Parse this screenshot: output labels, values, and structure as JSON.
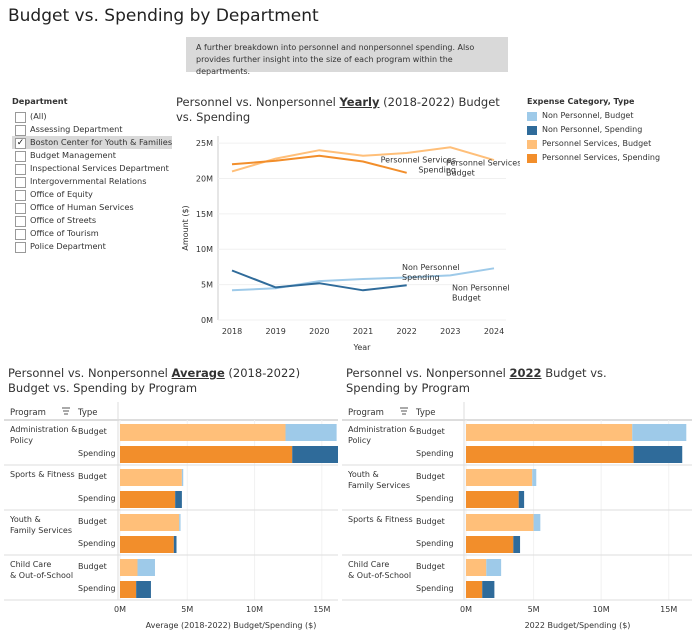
{
  "page": {
    "title": "Budget vs. Spending by Department",
    "description": "A further breakdown into personnel and nonpersonnel spending. Also provides further insight into the size of each program within the departments."
  },
  "filter": {
    "title": "Department",
    "items": [
      {
        "label": "(All)",
        "checked": false
      },
      {
        "label": "Assessing Department",
        "checked": false
      },
      {
        "label": "Boston Center for Youth & Families",
        "checked": true
      },
      {
        "label": "Budget Management",
        "checked": false
      },
      {
        "label": "Inspectional Services Department",
        "checked": false
      },
      {
        "label": "Intergovernmental Relations",
        "checked": false
      },
      {
        "label": "Office of Equity",
        "checked": false
      },
      {
        "label": "Office of Human Services",
        "checked": false
      },
      {
        "label": "Office of Streets",
        "checked": false
      },
      {
        "label": "Office of Tourism",
        "checked": false
      },
      {
        "label": "Police Department",
        "checked": false
      }
    ]
  },
  "legend": {
    "title": "Expense Category, Type",
    "items": [
      {
        "label": "Non Personnel, Budget",
        "color": "#9ecae9"
      },
      {
        "label": "Non Personnel, Spending",
        "color": "#2f6b9a"
      },
      {
        "label": "Personnel Services, Budget",
        "color": "#ffbf79"
      },
      {
        "label": "Personnel Services, Spending",
        "color": "#f28e2b"
      }
    ]
  },
  "line_chart": {
    "title_pre": "Personnel vs. Nonpersonnel ",
    "title_em": "Yearly",
    "title_post": " (2018-2022) Budget vs. Spending"
  },
  "avg_chart": {
    "title_pre": "Personnel vs. Nonpersonnel ",
    "title_em": "Average",
    "title_post": " (2018-2022) Budget vs. Spending by Program",
    "col_program": "Program",
    "col_type": "Type"
  },
  "y22_chart": {
    "title_pre": "Personnel vs. Nonpersonnel ",
    "title_em": "2022",
    "title_post": " Budget vs. Spending by Program",
    "col_program": "Program",
    "col_type": "Type"
  },
  "chart_data": [
    {
      "type": "line",
      "x": [
        2018,
        2019,
        2020,
        2021,
        2022,
        2023,
        2024
      ],
      "xlabel": "Year",
      "ylabel": "Amount ($)",
      "ylim": [
        0,
        26000000
      ],
      "yticks": [
        "0M",
        "5M",
        "10M",
        "15M",
        "20M",
        "25M"
      ],
      "series": [
        {
          "name": "Personnel Services, Budget",
          "label_lines": [
            "Personnel Services",
            "Budget"
          ],
          "color": "#ffbf79",
          "values": [
            21000000,
            22800000,
            24000000,
            23200000,
            23600000,
            24400000,
            22600000
          ]
        },
        {
          "name": "Personnel Services, Spending",
          "label_lines": [
            "Personnel Services",
            "Spending"
          ],
          "color": "#f28e2b",
          "values": [
            22000000,
            22500000,
            23200000,
            22400000,
            20800000,
            null,
            null
          ]
        },
        {
          "name": "Non Personnel, Budget",
          "label_lines": [
            "Non Personnel",
            "Budget"
          ],
          "color": "#9ecae9",
          "values": [
            4200000,
            4500000,
            5500000,
            5800000,
            6000000,
            6300000,
            7300000
          ]
        },
        {
          "name": "Non Personnel, Spending",
          "label_lines": [
            "Non Personnel",
            "Spending"
          ],
          "color": "#2f6b9a",
          "values": [
            7000000,
            4600000,
            5200000,
            4200000,
            4900000,
            null,
            null
          ]
        }
      ]
    },
    {
      "type": "bar",
      "stacked": true,
      "orientation": "horizontal",
      "xlabel": "Average (2018-2022) Budget/Spending ($)",
      "xlim": [
        0,
        16500000
      ],
      "xticks": [
        "0M",
        "5M",
        "10M",
        "15M"
      ],
      "programs": [
        {
          "name": "Administration & Policy",
          "rows": [
            {
              "type": "Budget",
              "personnel": 12300000,
              "nonpersonnel": 3800000
            },
            {
              "type": "Spending",
              "personnel": 12800000,
              "nonpersonnel": 3700000
            }
          ]
        },
        {
          "name": "Sports & Fitness",
          "rows": [
            {
              "type": "Budget",
              "personnel": 4600000,
              "nonpersonnel": 100000
            },
            {
              "type": "Spending",
              "personnel": 4100000,
              "nonpersonnel": 500000
            }
          ]
        },
        {
          "name": "Youth & Family Services",
          "rows": [
            {
              "type": "Budget",
              "personnel": 4400000,
              "nonpersonnel": 100000
            },
            {
              "type": "Spending",
              "personnel": 4000000,
              "nonpersonnel": 200000
            }
          ]
        },
        {
          "name": "Child Care & Out-of-School",
          "rows": [
            {
              "type": "Budget",
              "personnel": 1300000,
              "nonpersonnel": 1300000
            },
            {
              "type": "Spending",
              "personnel": 1200000,
              "nonpersonnel": 1100000
            }
          ]
        }
      ]
    },
    {
      "type": "bar",
      "stacked": true,
      "orientation": "horizontal",
      "xlabel": "2022 Budget/Spending ($)",
      "xlim": [
        0,
        16500000
      ],
      "xticks": [
        "0M",
        "5M",
        "10M",
        "15M"
      ],
      "programs": [
        {
          "name": "Administration & Policy",
          "rows": [
            {
              "type": "Budget",
              "personnel": 12300000,
              "nonpersonnel": 4000000
            },
            {
              "type": "Spending",
              "personnel": 12400000,
              "nonpersonnel": 3600000
            }
          ]
        },
        {
          "name": "Youth & Family Services",
          "rows": [
            {
              "type": "Budget",
              "personnel": 4900000,
              "nonpersonnel": 300000
            },
            {
              "type": "Spending",
              "personnel": 3900000,
              "nonpersonnel": 400000
            }
          ]
        },
        {
          "name": "Sports & Fitness",
          "rows": [
            {
              "type": "Budget",
              "personnel": 5000000,
              "nonpersonnel": 500000
            },
            {
              "type": "Spending",
              "personnel": 3500000,
              "nonpersonnel": 500000
            }
          ]
        },
        {
          "name": "Child Care & Out-of-School",
          "rows": [
            {
              "type": "Budget",
              "personnel": 1500000,
              "nonpersonnel": 1100000
            },
            {
              "type": "Spending",
              "personnel": 1200000,
              "nonpersonnel": 900000
            }
          ]
        }
      ]
    }
  ]
}
